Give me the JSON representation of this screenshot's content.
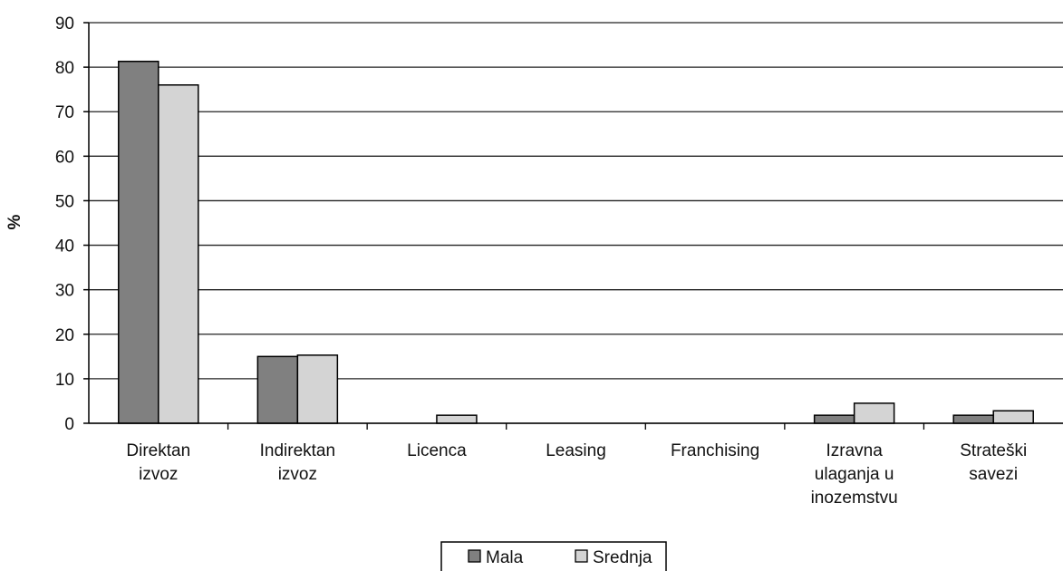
{
  "chart_data": {
    "type": "bar",
    "y_label": "%",
    "categories": [
      "Direktan\nizvoz",
      "Indirektan\nizvoz",
      "Licenca",
      "Leasing",
      "Franchising",
      "Izravna\nulaganja u\ninozemstvu",
      "Strateški\nsavezi"
    ],
    "series": [
      {
        "name": "Mala",
        "color": "#808080",
        "values": [
          81.3,
          15,
          0,
          0,
          0,
          1.8,
          1.8
        ]
      },
      {
        "name": "Srednja",
        "color": "#d4d4d4",
        "values": [
          76,
          15.3,
          1.8,
          0,
          0,
          4.5,
          2.8
        ]
      }
    ],
    "ylim": [
      0,
      90
    ],
    "yticks": [
      0,
      10,
      20,
      30,
      40,
      50,
      60,
      70,
      80,
      90
    ],
    "grid": true,
    "legend": "bottom"
  }
}
